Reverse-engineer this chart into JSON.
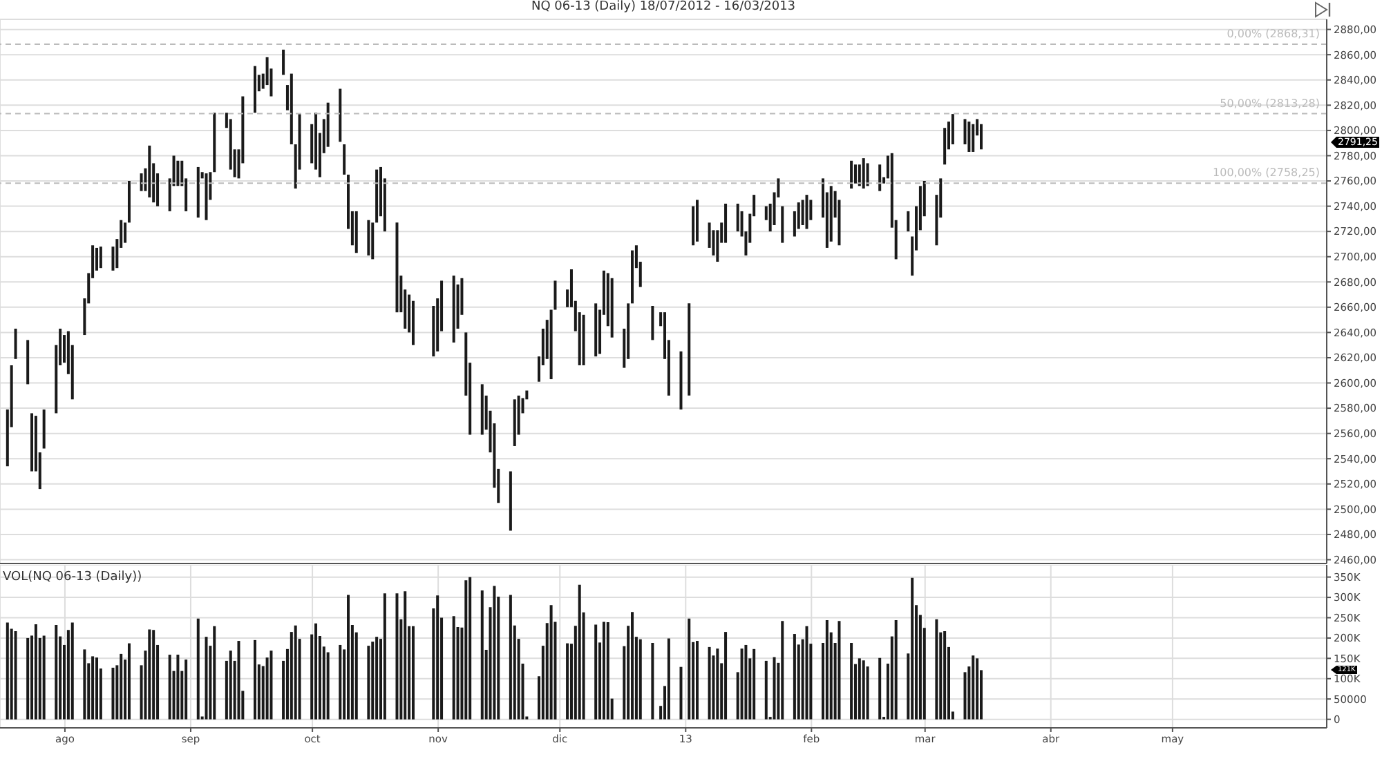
{
  "chart_data": [
    {
      "type": "bar",
      "title": "NQ 06-13 (Daily)  18/07/2012 - 16/03/2013",
      "color": "#1a1a1a",
      "grid": true,
      "tick_labels": "y",
      "x": [
        "2012-07-18",
        "2012-07-19",
        "2012-07-20",
        "2012-07-23",
        "2012-07-24",
        "2012-07-25",
        "2012-07-26",
        "2012-07-27",
        "2012-07-30",
        "2012-07-31",
        "2012-08-01",
        "2012-08-02",
        "2012-08-03",
        "2012-08-06",
        "2012-08-07",
        "2012-08-08",
        "2012-08-09",
        "2012-08-10",
        "2012-08-13",
        "2012-08-14",
        "2012-08-15",
        "2012-08-16",
        "2012-08-17",
        "2012-08-20",
        "2012-08-21",
        "2012-08-22",
        "2012-08-23",
        "2012-08-24",
        "2012-08-27",
        "2012-08-28",
        "2012-08-29",
        "2012-08-30",
        "2012-08-31",
        "2012-09-03",
        "2012-09-04",
        "2012-09-05",
        "2012-09-06",
        "2012-09-07",
        "2012-09-10",
        "2012-09-11",
        "2012-09-12",
        "2012-09-13",
        "2012-09-14",
        "2012-09-17",
        "2012-09-18",
        "2012-09-19",
        "2012-09-20",
        "2012-09-21",
        "2012-09-24",
        "2012-09-25",
        "2012-09-26",
        "2012-09-27",
        "2012-09-28",
        "2012-10-01",
        "2012-10-02",
        "2012-10-03",
        "2012-10-04",
        "2012-10-05",
        "2012-10-08",
        "2012-10-09",
        "2012-10-10",
        "2012-10-11",
        "2012-10-12",
        "2012-10-15",
        "2012-10-16",
        "2012-10-17",
        "2012-10-18",
        "2012-10-19",
        "2012-10-22",
        "2012-10-23",
        "2012-10-24",
        "2012-10-25",
        "2012-10-26",
        "2012-10-31",
        "2012-11-01",
        "2012-11-02",
        "2012-11-05",
        "2012-11-06",
        "2012-11-07",
        "2012-11-08",
        "2012-11-09",
        "2012-11-12",
        "2012-11-13",
        "2012-11-14",
        "2012-11-15",
        "2012-11-16",
        "2012-11-19",
        "2012-11-20",
        "2012-11-21",
        "2012-11-22",
        "2012-11-23",
        "2012-11-26",
        "2012-11-27",
        "2012-11-28",
        "2012-11-29",
        "2012-11-30",
        "2012-12-03",
        "2012-12-04",
        "2012-12-05",
        "2012-12-06",
        "2012-12-07",
        "2012-12-10",
        "2012-12-11",
        "2012-12-12",
        "2012-12-13",
        "2012-12-14",
        "2012-12-17",
        "2012-12-18",
        "2012-12-19",
        "2012-12-20",
        "2012-12-21",
        "2012-12-24",
        "2012-12-26",
        "2012-12-27",
        "2012-12-28",
        "2012-12-31",
        "2013-01-02",
        "2013-01-03",
        "2013-01-04",
        "2013-01-07",
        "2013-01-08",
        "2013-01-09",
        "2013-01-10",
        "2013-01-11",
        "2013-01-14",
        "2013-01-15",
        "2013-01-16",
        "2013-01-17",
        "2013-01-18",
        "2013-01-21",
        "2013-01-22",
        "2013-01-23",
        "2013-01-24",
        "2013-01-25",
        "2013-01-28",
        "2013-01-29",
        "2013-01-30",
        "2013-01-31",
        "2013-02-01",
        "2013-02-04",
        "2013-02-05",
        "2013-02-06",
        "2013-02-07",
        "2013-02-08",
        "2013-02-11",
        "2013-02-12",
        "2013-02-13",
        "2013-02-14",
        "2013-02-15",
        "2013-02-18",
        "2013-02-19",
        "2013-02-20",
        "2013-02-21",
        "2013-02-22",
        "2013-02-25",
        "2013-02-26",
        "2013-02-27",
        "2013-02-28",
        "2013-03-01",
        "2013-03-04",
        "2013-03-05",
        "2013-03-06",
        "2013-03-07",
        "2013-03-08",
        "2013-03-11",
        "2013-03-12",
        "2013-03-13",
        "2013-03-14",
        "2013-03-15"
      ],
      "base": [
        2534,
        2565,
        2619,
        2599,
        2530,
        2530,
        2516,
        2548,
        2576,
        2614,
        2616,
        2607,
        2587,
        2638,
        2663,
        2683,
        2689,
        2691,
        2689,
        2691,
        2707,
        2711,
        2727,
        2752,
        2752,
        2747,
        2743,
        2740,
        2736,
        2756,
        2756,
        2756,
        2736,
        2731,
        2762,
        2729,
        2745,
        2767,
        2802,
        2769,
        2763,
        2762,
        2774,
        2814,
        2831,
        2833,
        2836,
        2827,
        2844,
        2816,
        2789,
        2754,
        2769,
        2774,
        2769,
        2763,
        2782,
        2787,
        2791,
        2765,
        2722,
        2709,
        2703,
        2701,
        2698,
        2727,
        2732,
        2720,
        2656,
        2656,
        2643,
        2640,
        2630,
        2621,
        2625,
        2641,
        2632,
        2643,
        2654,
        2590,
        2559,
        2559,
        2563,
        2545,
        2517,
        2505,
        2483,
        2550,
        2559,
        2576,
        2587,
        2601,
        2614,
        2619,
        2603,
        2658,
        2660,
        2660,
        2641,
        2614,
        2614,
        2621,
        2623,
        2654,
        2645,
        2636,
        2612,
        2619,
        2663,
        2691,
        2676,
        2634,
        2645,
        2619,
        2590,
        2579,
        2590,
        2709,
        2712,
        2707,
        2701,
        2696,
        2711,
        2711,
        2720,
        2716,
        2701,
        2711,
        2732,
        2729,
        2720,
        2725,
        2747,
        2711,
        2716,
        2722,
        2725,
        2722,
        2729,
        2731,
        2707,
        2712,
        2731,
        2709,
        2754,
        2758,
        2756,
        2754,
        2756,
        2752,
        2758,
        2762,
        2723,
        2698,
        2720,
        2685,
        2705,
        2721,
        2732,
        2709,
        2731,
        2773,
        2785,
        2789,
        2789,
        2783,
        2783,
        2796,
        2785
      ],
      "values": [
        45,
        49,
        24,
        35,
        46,
        44,
        29,
        31,
        54,
        29,
        22,
        34,
        43,
        29,
        24,
        26,
        18,
        17,
        19,
        23,
        22,
        16,
        33,
        14,
        18,
        41,
        31,
        26,
        26,
        24,
        20,
        20,
        26,
        40,
        5,
        37,
        22,
        47,
        12,
        40,
        22,
        23,
        53,
        37,
        13,
        12,
        22,
        22,
        20,
        20,
        56,
        35,
        44,
        31,
        45,
        35,
        27,
        35,
        42,
        24,
        43,
        27,
        33,
        28,
        29,
        42,
        39,
        42,
        71,
        29,
        31,
        30,
        35,
        40,
        42,
        40,
        53,
        35,
        29,
        50,
        57,
        40,
        27,
        33,
        51,
        27,
        47,
        37,
        31,
        12,
        7,
        20,
        29,
        31,
        55,
        23,
        14,
        30,
        24,
        42,
        40,
        42,
        35,
        35,
        42,
        47,
        31,
        44,
        42,
        18,
        20,
        27,
        11,
        37,
        44,
        46,
        73,
        31,
        33,
        20,
        20,
        25,
        16,
        31,
        22,
        20,
        19,
        23,
        17,
        11,
        22,
        26,
        15,
        29,
        20,
        21,
        20,
        27,
        16,
        31,
        44,
        44,
        21,
        36,
        22,
        15,
        17,
        24,
        18,
        21,
        5,
        18,
        59,
        31,
        16,
        31,
        35,
        35,
        28,
        40,
        31,
        29,
        22,
        24,
        20,
        24,
        22,
        13,
        20
      ],
      "xlim": [
        "2012-07-16",
        "2013-06-08"
      ],
      "xticks": [
        "2012-08-01",
        "2012-09-01",
        "2012-10-01",
        "2012-11-01",
        "2012-12-01",
        "2013-01-01",
        "2013-02-01",
        "2013-03-01",
        "2013-04-01",
        "2013-05-01"
      ],
      "ylim": [
        2457,
        2888
      ],
      "yticks": [
        {
          "value": 2460,
          "label": "2460,00"
        },
        {
          "value": 2480,
          "label": "2480,00"
        },
        {
          "value": 2500,
          "label": "2500,00"
        },
        {
          "value": 2520,
          "label": "2520,00"
        },
        {
          "value": 2540,
          "label": "2540,00"
        },
        {
          "value": 2560,
          "label": "2560,00"
        },
        {
          "value": 2580,
          "label": "2580,00"
        },
        {
          "value": 2600,
          "label": "2600,00"
        },
        {
          "value": 2620,
          "label": "2620,00"
        },
        {
          "value": 2640,
          "label": "2640,00"
        },
        {
          "value": 2660,
          "label": "2660,00"
        },
        {
          "value": 2680,
          "label": "2680,00"
        },
        {
          "value": 2700,
          "label": "2700,00"
        },
        {
          "value": 2720,
          "label": "2720,00"
        },
        {
          "value": 2740,
          "label": "2740,00"
        },
        {
          "value": 2760,
          "label": "2760,00"
        },
        {
          "value": 2780,
          "label": "2780,00"
        },
        {
          "value": 2800,
          "label": "2800,00"
        },
        {
          "value": 2820,
          "label": "2820,00"
        },
        {
          "value": 2840,
          "label": "2840,00"
        },
        {
          "value": 2860,
          "label": "2860,00"
        },
        {
          "value": 2880,
          "label": "2880,00"
        }
      ],
      "ref_lines": [
        {
          "axis": "y",
          "value": 2868.31,
          "label": "0,00% (2868,31)",
          "color": "#bbbbbb",
          "line_style": "dashed"
        },
        {
          "axis": "y",
          "value": 2813.28,
          "label": "50,00% (2813,28)",
          "color": "#bbbbbb",
          "line_style": "dashed"
        },
        {
          "axis": "y",
          "value": 2758.25,
          "label": "100,00% (2758,25)",
          "color": "#bbbbbb",
          "line_style": "dashed"
        }
      ],
      "annotations": [
        "2791,25"
      ]
    },
    {
      "type": "bar",
      "title": "VOL(NQ 06-13 (Daily))",
      "color": "#1a1a1a",
      "grid": true,
      "x": [
        "2012-07-18",
        "2012-07-19",
        "2012-07-20",
        "2012-07-23",
        "2012-07-24",
        "2012-07-25",
        "2012-07-26",
        "2012-07-27",
        "2012-07-30",
        "2012-07-31",
        "2012-08-01",
        "2012-08-02",
        "2012-08-03",
        "2012-08-06",
        "2012-08-07",
        "2012-08-08",
        "2012-08-09",
        "2012-08-10",
        "2012-08-13",
        "2012-08-14",
        "2012-08-15",
        "2012-08-16",
        "2012-08-17",
        "2012-08-20",
        "2012-08-21",
        "2012-08-22",
        "2012-08-23",
        "2012-08-24",
        "2012-08-27",
        "2012-08-28",
        "2012-08-29",
        "2012-08-30",
        "2012-08-31",
        "2012-09-03",
        "2012-09-04",
        "2012-09-05",
        "2012-09-06",
        "2012-09-07",
        "2012-09-10",
        "2012-09-11",
        "2012-09-12",
        "2012-09-13",
        "2012-09-14",
        "2012-09-17",
        "2012-09-18",
        "2012-09-19",
        "2012-09-20",
        "2012-09-21",
        "2012-09-24",
        "2012-09-25",
        "2012-09-26",
        "2012-09-27",
        "2012-09-28",
        "2012-10-01",
        "2012-10-02",
        "2012-10-03",
        "2012-10-04",
        "2012-10-05",
        "2012-10-08",
        "2012-10-09",
        "2012-10-10",
        "2012-10-11",
        "2012-10-12",
        "2012-10-15",
        "2012-10-16",
        "2012-10-17",
        "2012-10-18",
        "2012-10-19",
        "2012-10-22",
        "2012-10-23",
        "2012-10-24",
        "2012-10-25",
        "2012-10-26",
        "2012-10-31",
        "2012-11-01",
        "2012-11-02",
        "2012-11-05",
        "2012-11-06",
        "2012-11-07",
        "2012-11-08",
        "2012-11-09",
        "2012-11-12",
        "2012-11-13",
        "2012-11-14",
        "2012-11-15",
        "2012-11-16",
        "2012-11-19",
        "2012-11-20",
        "2012-11-21",
        "2012-11-22",
        "2012-11-23",
        "2012-11-26",
        "2012-11-27",
        "2012-11-28",
        "2012-11-29",
        "2012-11-30",
        "2012-12-03",
        "2012-12-04",
        "2012-12-05",
        "2012-12-06",
        "2012-12-07",
        "2012-12-10",
        "2012-12-11",
        "2012-12-12",
        "2012-12-13",
        "2012-12-14",
        "2012-12-17",
        "2012-12-18",
        "2012-12-19",
        "2012-12-20",
        "2012-12-21",
        "2012-12-24",
        "2012-12-26",
        "2012-12-27",
        "2012-12-28",
        "2012-12-31",
        "2013-01-02",
        "2013-01-03",
        "2013-01-04",
        "2013-01-07",
        "2013-01-08",
        "2013-01-09",
        "2013-01-10",
        "2013-01-11",
        "2013-01-14",
        "2013-01-15",
        "2013-01-16",
        "2013-01-17",
        "2013-01-18",
        "2013-01-21",
        "2013-01-22",
        "2013-01-23",
        "2013-01-24",
        "2013-01-25",
        "2013-01-28",
        "2013-01-29",
        "2013-01-30",
        "2013-01-31",
        "2013-02-01",
        "2013-02-04",
        "2013-02-05",
        "2013-02-06",
        "2013-02-07",
        "2013-02-08",
        "2013-02-11",
        "2013-02-12",
        "2013-02-13",
        "2013-02-14",
        "2013-02-15",
        "2013-02-18",
        "2013-02-19",
        "2013-02-20",
        "2013-02-21",
        "2013-02-22",
        "2013-02-25",
        "2013-02-26",
        "2013-02-27",
        "2013-02-28",
        "2013-03-01",
        "2013-03-04",
        "2013-03-05",
        "2013-03-06",
        "2013-03-07",
        "2013-03-08",
        "2013-03-11",
        "2013-03-12",
        "2013-03-13",
        "2013-03-14",
        "2013-03-15"
      ],
      "values": [
        238000,
        223000,
        217000,
        200000,
        206000,
        234000,
        200000,
        206000,
        232000,
        204000,
        183000,
        220000,
        238000,
        172000,
        138000,
        155000,
        152000,
        125000,
        127000,
        133000,
        161000,
        147000,
        187000,
        133000,
        169000,
        221000,
        220000,
        183000,
        159000,
        119000,
        159000,
        119000,
        147000,
        248000,
        7000,
        203000,
        181000,
        229000,
        144000,
        169000,
        144000,
        193000,
        70000,
        195000,
        135000,
        131000,
        152000,
        169000,
        144000,
        173000,
        215000,
        231000,
        198000,
        209000,
        236000,
        205000,
        179000,
        165000,
        183000,
        172000,
        306000,
        232000,
        214000,
        181000,
        191000,
        203000,
        198000,
        310000,
        310000,
        246000,
        315000,
        229000,
        229000,
        273000,
        305000,
        250000,
        254000,
        227000,
        226000,
        342000,
        350000,
        317000,
        171000,
        276000,
        328000,
        302000,
        306000,
        231000,
        198000,
        137000,
        7000,
        106000,
        181000,
        237000,
        281000,
        240000,
        187000,
        186000,
        230000,
        331000,
        263000,
        233000,
        189000,
        240000,
        239000,
        51000,
        180000,
        230000,
        264000,
        203000,
        197000,
        188000,
        33000,
        82000,
        199000,
        129000,
        248000,
        190000,
        193000,
        178000,
        157000,
        174000,
        138000,
        215000,
        116000,
        174000,
        183000,
        150000,
        173000,
        144000,
        6000,
        153000,
        139000,
        242000,
        210000,
        184000,
        197000,
        229000,
        186000,
        188000,
        244000,
        214000,
        188000,
        242000,
        188000,
        136000,
        150000,
        145000,
        130000,
        151000,
        6000,
        137000,
        204000,
        244000,
        162000,
        348000,
        281000,
        257000,
        225000,
        246000,
        214000,
        217000,
        178000,
        19000,
        116000,
        130000,
        157000,
        150000,
        121000
      ],
      "xlim": [
        "2012-07-16",
        "2013-06-08"
      ],
      "xticks": [
        {
          "value": "2012-08-01",
          "label": "ago"
        },
        {
          "value": "2012-09-01",
          "label": "sep"
        },
        {
          "value": "2012-10-01",
          "label": "oct"
        },
        {
          "value": "2012-11-01",
          "label": "nov"
        },
        {
          "value": "2012-12-01",
          "label": "dic"
        },
        {
          "value": "2013-01-01",
          "label": "13"
        },
        {
          "value": "2013-02-01",
          "label": "feb"
        },
        {
          "value": "2013-03-01",
          "label": "mar"
        },
        {
          "value": "2013-04-01",
          "label": "abr"
        },
        {
          "value": "2013-05-01",
          "label": "may"
        }
      ],
      "ylim": [
        -21000,
        380000
      ],
      "yticks": [
        0,
        50000,
        {
          "value": 100000,
          "label": "100K"
        },
        {
          "value": 150000,
          "label": "150K"
        },
        {
          "value": 200000,
          "label": "200K"
        },
        {
          "value": 250000,
          "label": "250K"
        },
        {
          "value": 300000,
          "label": "300K"
        },
        {
          "value": 350000,
          "label": "350K"
        }
      ],
      "annotations": [
        "121K"
      ]
    }
  ]
}
